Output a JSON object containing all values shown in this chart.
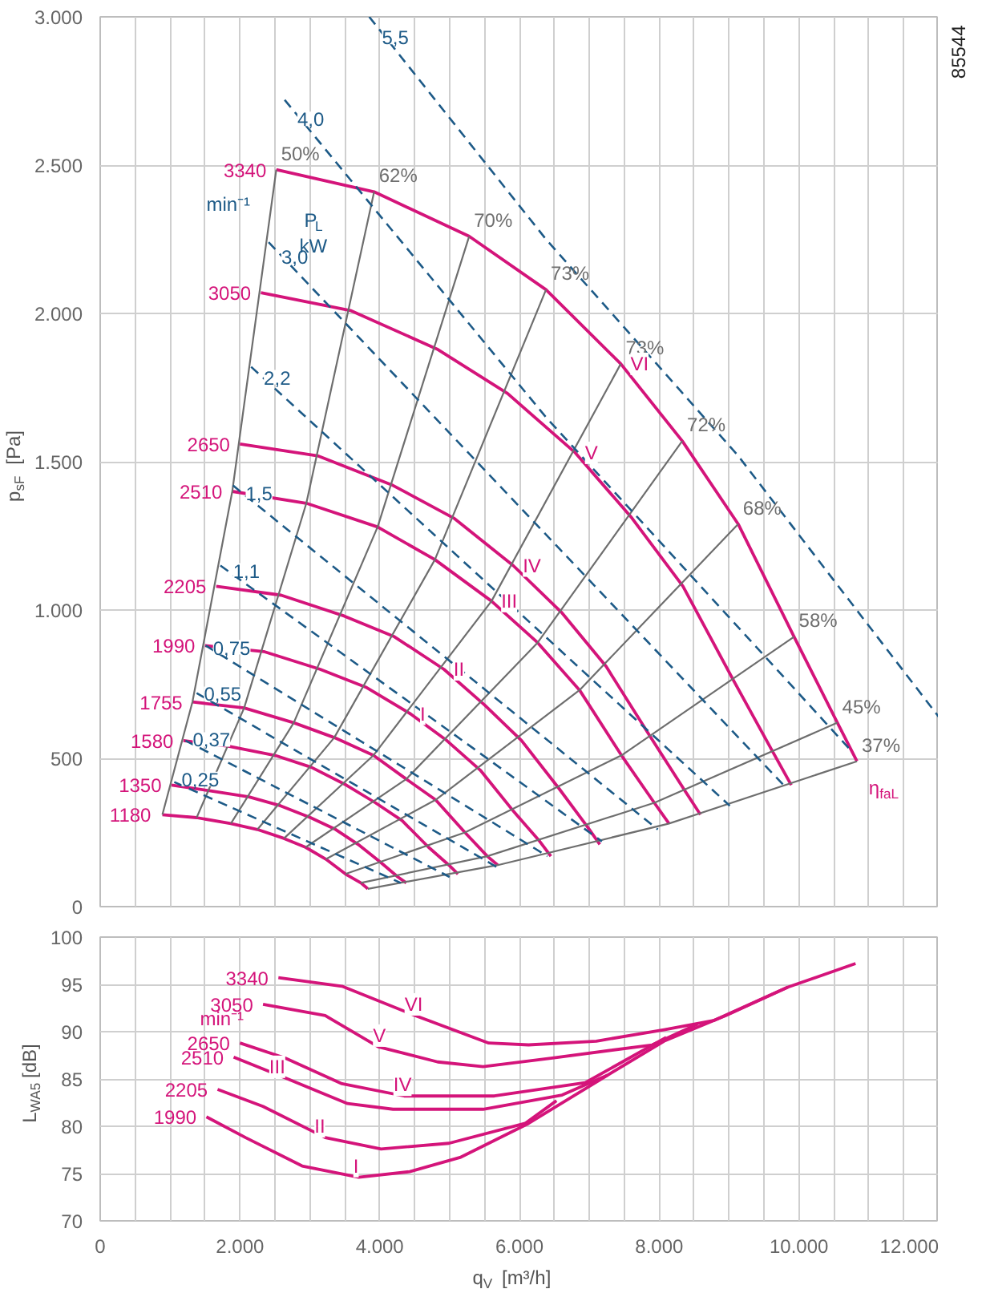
{
  "chart_data": [
    {
      "type": "line",
      "ylabel": "p$_{sF}$ [Pa]",
      "xlim": [
        0,
        12000
      ],
      "ylim": [
        0,
        3000
      ],
      "xticks": [
        0,
        500,
        1000,
        1500,
        2000,
        2500,
        3000,
        3500,
        4000,
        4500,
        5000,
        5500,
        6000,
        6500,
        7000,
        7500,
        8000,
        8500,
        9000,
        9500,
        10000,
        10500,
        11000,
        11500,
        12000
      ],
      "yticks": [
        0,
        500,
        {
          "value": 1000,
          "label": "1.000"
        },
        {
          "value": 1500,
          "label": "1.500"
        },
        {
          "value": 2000,
          "label": "2.000"
        },
        {
          "value": 2500,
          "label": "2.500"
        },
        {
          "value": 3000,
          "label": "3.000"
        }
      ],
      "tick_labels": "y",
      "grid": true,
      "series": [
        {
          "name": "3340",
          "color": "#d4147a",
          "x": [
            2520,
            3920,
            5280,
            6380,
            7450,
            8330,
            9130,
            9930,
            10550,
            10830
          ],
          "values": [
            2485,
            2410,
            2260,
            2080,
            1830,
            1570,
            1290,
            910,
            620,
            490
          ]
        },
        {
          "name": "3050",
          "color": "#d4147a",
          "x": [
            2300,
            3580,
            4820,
            5830,
            6800,
            7610,
            8340,
            9070,
            9630,
            9890
          ],
          "values": [
            2070,
            2010,
            1880,
            1730,
            1530,
            1310,
            1080,
            760,
            520,
            410
          ]
        },
        {
          "name": "2650",
          "color": "#d4147a",
          "x": [
            2000,
            3110,
            4190,
            5060,
            5910,
            6610,
            7240,
            7880,
            8370,
            8590
          ],
          "values": [
            1560,
            1520,
            1420,
            1310,
            1150,
            990,
            810,
            570,
            390,
            310
          ]
        },
        {
          "name": "2510",
          "color": "#d4147a",
          "x": [
            1890,
            2950,
            3970,
            4790,
            5600,
            6260,
            6860,
            7460,
            7930,
            8140
          ],
          "values": [
            1400,
            1360,
            1280,
            1170,
            1030,
            890,
            730,
            510,
            350,
            280
          ]
        },
        {
          "name": "2205",
          "color": "#d4147a",
          "x": [
            1660,
            2590,
            3490,
            4210,
            4920,
            5500,
            6030,
            6560,
            6970,
            7150
          ],
          "values": [
            1080,
            1050,
            980,
            910,
            800,
            680,
            560,
            400,
            270,
            210
          ]
        },
        {
          "name": "1990",
          "color": "#d4147a",
          "x": [
            1500,
            2340,
            3150,
            3800,
            4440,
            4960,
            5440,
            5920,
            6290,
            6450
          ],
          "values": [
            880,
            860,
            800,
            740,
            650,
            560,
            460,
            320,
            220,
            170
          ]
        },
        {
          "name": "1755",
          "color": "#d4147a",
          "x": [
            1320,
            2060,
            2770,
            3350,
            3910,
            4380,
            4800,
            5220,
            5540,
            5690
          ],
          "values": [
            690,
            670,
            620,
            570,
            510,
            430,
            360,
            250,
            170,
            140
          ]
        },
        {
          "name": "1580",
          "color": "#d4147a",
          "x": [
            1190,
            1850,
            2500,
            3020,
            3520,
            3940,
            4320,
            4700,
            4990,
            5120
          ],
          "values": [
            560,
            540,
            510,
            470,
            410,
            350,
            290,
            200,
            140,
            110
          ]
        },
        {
          "name": "1350",
          "color": "#d4147a",
          "x": [
            1020,
            1580,
            2130,
            2580,
            3010,
            3370,
            3690,
            4010,
            4260,
            4380
          ],
          "values": [
            410,
            390,
            370,
            340,
            300,
            260,
            210,
            150,
            100,
            80
          ]
        },
        {
          "name": "1180",
          "color": "#d4147a",
          "x": [
            890,
            1380,
            1870,
            2250,
            2630,
            2940,
            3230,
            3510,
            3730,
            3830
          ],
          "values": [
            310,
            300,
            280,
            260,
            230,
            200,
            160,
            110,
            80,
            60
          ]
        },
        {
          "name": "50%",
          "color": "#6e6e6e",
          "x": [
            890,
            1320,
            1890,
            2520
          ],
          "values": [
            310,
            690,
            1400,
            2485
          ]
        },
        {
          "name": "62%",
          "color": "#6e6e6e",
          "x": [
            1380,
            2060,
            2950,
            3920
          ],
          "values": [
            300,
            670,
            1360,
            2410
          ]
        },
        {
          "name": "70%",
          "color": "#6e6e6e",
          "x": [
            1870,
            2770,
            3970,
            5280
          ],
          "values": [
            280,
            620,
            1280,
            2260
          ]
        },
        {
          "name": "73%",
          "color": "#6e6e6e",
          "x": [
            2250,
            3350,
            4790,
            6380
          ],
          "values": [
            260,
            570,
            1170,
            2080
          ]
        },
        {
          "name": "73%",
          "color": "#6e6e6e",
          "x": [
            2630,
            3910,
            5600,
            7450
          ],
          "values": [
            230,
            510,
            1030,
            1830
          ]
        },
        {
          "name": "72%",
          "color": "#6e6e6e",
          "x": [
            2940,
            4380,
            6260,
            8330
          ],
          "values": [
            200,
            430,
            890,
            1570
          ]
        },
        {
          "name": "68%",
          "color": "#6e6e6e",
          "x": [
            3230,
            4800,
            6860,
            9130
          ],
          "values": [
            160,
            360,
            730,
            1290
          ]
        },
        {
          "name": "58%",
          "color": "#6e6e6e",
          "x": [
            3510,
            5220,
            7460,
            9930
          ],
          "values": [
            110,
            250,
            510,
            910
          ]
        },
        {
          "name": "45%",
          "color": "#6e6e6e",
          "x": [
            3730,
            5540,
            7930,
            10550
          ],
          "values": [
            80,
            170,
            350,
            620
          ]
        },
        {
          "name": "37%",
          "color": "#6e6e6e",
          "x": [
            3830,
            5690,
            8140,
            10830
          ],
          "values": [
            60,
            140,
            280,
            490
          ]
        },
        {
          "name": "5,5",
          "color": "#1d5a87",
          "line_style": "dashed",
          "x": [
            3850,
            6380,
            9130,
            12000
          ],
          "values": [
            3000,
            2250,
            1520,
            640
          ]
        },
        {
          "name": "4,0",
          "color": "#1d5a87",
          "line_style": "dashed",
          "x": [
            2640,
            6380,
            10730
          ],
          "values": [
            2720,
            1650,
            530
          ]
        },
        {
          "name": "3,0",
          "color": "#1d5a87",
          "line_style": "dashed",
          "x": [
            2410,
            9820
          ],
          "values": [
            2240,
            400
          ]
        },
        {
          "name": "2,2",
          "color": "#1d5a87",
          "line_style": "dashed",
          "x": [
            2160,
            9010
          ],
          "values": [
            1820,
            340
          ]
        },
        {
          "name": "1,5",
          "color": "#1d5a87",
          "line_style": "dashed",
          "x": [
            1900,
            7980
          ],
          "values": [
            1420,
            260
          ]
        },
        {
          "name": "1,1",
          "color": "#1d5a87",
          "line_style": "dashed",
          "x": [
            1720,
            7180
          ],
          "values": [
            1150,
            220
          ]
        },
        {
          "name": "0,75",
          "color": "#1d5a87",
          "line_style": "dashed",
          "x": [
            1510,
            6400
          ],
          "values": [
            880,
            170
          ]
        },
        {
          "name": "0,55",
          "color": "#1d5a87",
          "line_style": "dashed",
          "x": [
            1380,
            5700
          ],
          "values": [
            720,
            130
          ]
        },
        {
          "name": "0,37",
          "color": "#1d5a87",
          "line_style": "dashed",
          "x": [
            1220,
            5000
          ],
          "values": [
            560,
            100
          ]
        },
        {
          "name": "0,25",
          "color": "#1d5a87",
          "line_style": "dashed",
          "x": [
            1060,
            4300
          ],
          "values": [
            420,
            80
          ]
        }
      ],
      "annotations": [
        "min⁻¹",
        "P$_{L}$",
        "kW",
        {
          "text": "VI",
          "x": 7450,
          "y": 1830
        },
        {
          "text": "V",
          "x": 6800,
          "y": 1530
        },
        {
          "text": "IV",
          "x": 5910,
          "y": 1150
        },
        {
          "text": "III",
          "x": 5600,
          "y": 1030
        },
        {
          "text": "II",
          "x": 4920,
          "y": 800
        },
        {
          "text": "I",
          "x": 4440,
          "y": 650
        },
        "η$_{faL}$",
        "85544"
      ]
    },
    {
      "type": "line",
      "xlabel": "q$_{V}$ [m³/h]",
      "ylabel": "L$_{WA5}$ [dB]",
      "xlim": [
        0,
        12000
      ],
      "ylim": [
        70,
        100
      ],
      "xticks": [
        0,
        {
          "value": 500,
          "label": null
        },
        {
          "value": 1000,
          "label": null
        },
        {
          "value": 1500,
          "label": null
        },
        {
          "value": 2000,
          "label": "2.000"
        },
        {
          "value": 2500,
          "label": null
        },
        {
          "value": 3000,
          "label": null
        },
        {
          "value": 3500,
          "label": null
        },
        {
          "value": 4000,
          "label": "4.000"
        },
        {
          "value": 4500,
          "label": null
        },
        {
          "value": 5000,
          "label": null
        },
        {
          "value": 5500,
          "label": null
        },
        {
          "value": 6000,
          "label": "6.000"
        },
        {
          "value": 6500,
          "label": null
        },
        {
          "value": 7000,
          "label": null
        },
        {
          "value": 7500,
          "label": null
        },
        {
          "value": 8000,
          "label": "8.000"
        },
        {
          "value": 8500,
          "label": null
        },
        {
          "value": 9000,
          "label": null
        },
        {
          "value": 9500,
          "label": null
        },
        {
          "value": 10000,
          "label": "10.000"
        },
        {
          "value": 10500,
          "label": null
        },
        {
          "value": 11000,
          "label": null
        },
        {
          "value": 11500,
          "label": null
        },
        {
          "value": 12000,
          "label": "12.000"
        }
      ],
      "yticks": [
        70,
        75,
        80,
        85,
        90,
        95,
        100
      ],
      "grid": true,
      "series": [
        {
          "name": "3340",
          "color": "#d4147a",
          "x": [
            2550,
            3460,
            4510,
            5560,
            6130,
            7100,
            8070,
            8790,
            9840
          ],
          "values": [
            95.7,
            94.8,
            91.7,
            88.8,
            88.6,
            89.0,
            90.2,
            91.2,
            94.7
          ]
        },
        {
          "name": "3050",
          "color": "#d4147a",
          "x": [
            2330,
            3220,
            3980,
            4830,
            5480,
            6450,
            7900,
            8550
          ],
          "values": [
            92.9,
            91.7,
            88.4,
            86.8,
            86.3,
            87.2,
            88.6,
            90.8
          ]
        },
        {
          "name": "2650",
          "color": "#d4147a",
          "x": [
            2000,
            2650,
            3460,
            4350,
            5640,
            6940,
            8100
          ],
          "values": [
            88.8,
            87.2,
            84.5,
            83.2,
            83.2,
            84.6,
            89.4
          ]
        },
        {
          "name": "2510",
          "color": "#d4147a",
          "x": [
            1910,
            2650,
            3540,
            4190,
            5480,
            6610,
            7260
          ],
          "values": [
            87.3,
            85.1,
            82.4,
            81.8,
            81.8,
            83.3,
            85.4
          ]
        },
        {
          "name": "2205",
          "color": "#d4147a",
          "x": [
            1680,
            2330,
            3220,
            4020,
            4990,
            6080,
            6530
          ],
          "values": [
            83.9,
            82.1,
            78.8,
            77.6,
            78.2,
            80.3,
            82.7
          ]
        },
        {
          "name": "1990",
          "color": "#d4147a",
          "x": [
            1520,
            2080,
            2890,
            3700,
            4430,
            5150,
            5640,
            6130,
            7260,
            8070,
            8950,
            9840,
            10810
          ],
          "values": [
            81.0,
            78.8,
            75.8,
            74.6,
            75.2,
            76.7,
            78.5,
            80.3,
            85.4,
            89.0,
            91.7,
            94.7,
            97.2
          ]
        }
      ],
      "annotations": [
        "min⁻¹",
        {
          "text": "VI",
          "x": 4510,
          "y": 91.7
        },
        {
          "text": "V",
          "x": 3980,
          "y": 88.4
        },
        {
          "text": "IV",
          "x": 4350,
          "y": 83.2
        },
        {
          "text": "III",
          "x": 2650,
          "y": 85.1
        },
        {
          "text": "II",
          "x": 3220,
          "y": 78.8
        },
        {
          "text": "I",
          "x": 3700,
          "y": 74.6
        }
      ]
    }
  ]
}
